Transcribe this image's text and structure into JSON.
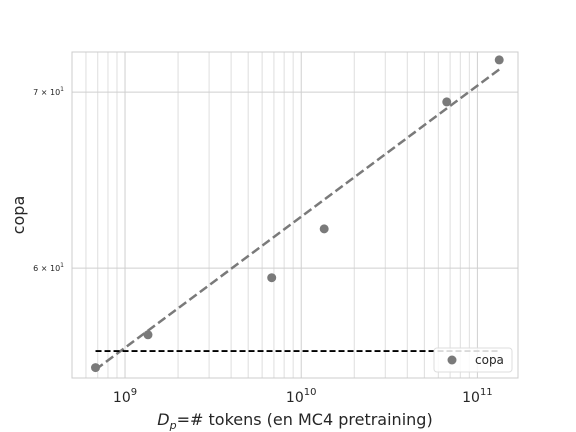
{
  "chart_data": {
    "type": "scatter",
    "title": "",
    "xlabel_math": "D",
    "xlabel_sub": "p",
    "xlabel_rest": "=# tokens (en MC4 pretraining)",
    "ylabel": "copa",
    "xscale": "log",
    "yscale": "log",
    "xlim": [
      500000000,
      170000000000
    ],
    "ylim": [
      54.5,
      72.5
    ],
    "x_ticks": [
      {
        "value": 1000000000,
        "base": "10",
        "exp": "9"
      },
      {
        "value": 10000000000,
        "base": "10",
        "exp": "10"
      },
      {
        "value": 100000000000,
        "base": "10",
        "exp": "11"
      }
    ],
    "y_ticks": [
      {
        "value": 60,
        "mantissa": "6 × 10",
        "exp": "1"
      },
      {
        "value": 70,
        "mantissa": "7 × 10",
        "exp": "1"
      }
    ],
    "grid": true,
    "series": [
      {
        "name": "copa",
        "kind": "scatter",
        "color": "#7a7a7a",
        "points": [
          {
            "x": 680000000,
            "y": 55.0
          },
          {
            "x": 1350000000,
            "y": 56.6
          },
          {
            "x": 6800000000,
            "y": 59.5
          },
          {
            "x": 13500000000,
            "y": 62.1
          },
          {
            "x": 67000000000,
            "y": 69.4
          },
          {
            "x": 133000000000,
            "y": 72.0
          }
        ]
      }
    ],
    "trend_line": {
      "style": "dashed",
      "color": "#7a7a7a",
      "points": [
        {
          "x": 680000000,
          "y": 54.9
        },
        {
          "x": 133000000000,
          "y": 71.4
        }
      ]
    },
    "baseline": {
      "style": "dashed",
      "color": "#000000",
      "y": 55.8,
      "x_range": [
        680000000,
        133000000000
      ]
    },
    "legend": {
      "position": "lower-right",
      "entries": [
        "copa"
      ]
    }
  }
}
